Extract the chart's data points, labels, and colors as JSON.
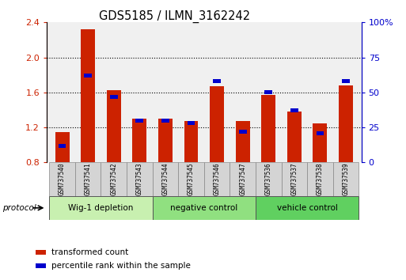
{
  "title": "GDS5185 / ILMN_3162242",
  "samples": [
    "GSM737540",
    "GSM737541",
    "GSM737542",
    "GSM737543",
    "GSM737544",
    "GSM737545",
    "GSM737546",
    "GSM737547",
    "GSM737536",
    "GSM737537",
    "GSM737538",
    "GSM737539"
  ],
  "transformed_count": [
    1.15,
    2.32,
    1.63,
    1.3,
    1.3,
    1.27,
    1.67,
    1.27,
    1.57,
    1.38,
    1.25,
    1.68
  ],
  "percentile_rank": [
    12,
    62,
    47,
    30,
    30,
    28,
    58,
    22,
    50,
    37,
    21,
    58
  ],
  "groups": [
    {
      "label": "Wig-1 depletion",
      "start": 0,
      "end": 4,
      "color": "#c8f0b0"
    },
    {
      "label": "negative control",
      "start": 4,
      "end": 8,
      "color": "#90e080"
    },
    {
      "label": "vehicle control",
      "start": 8,
      "end": 12,
      "color": "#60d060"
    }
  ],
  "bar_color": "#cc2200",
  "blue_color": "#0000cc",
  "ylim_left": [
    0.8,
    2.4
  ],
  "ylim_right": [
    0,
    100
  ],
  "yticks_left": [
    0.8,
    1.2,
    1.6,
    2.0,
    2.4
  ],
  "yticks_right": [
    0,
    25,
    50,
    75,
    100
  ],
  "ytick_labels_left": [
    "0.8",
    "1.2",
    "1.6",
    "2.0",
    "2.4"
  ],
  "ytick_labels_right": [
    "0",
    "25",
    "50",
    "75",
    "100%"
  ],
  "background_color": "#ffffff",
  "plot_bg": "#f0f0f0",
  "bar_width": 0.55,
  "blue_bar_width": 0.3
}
